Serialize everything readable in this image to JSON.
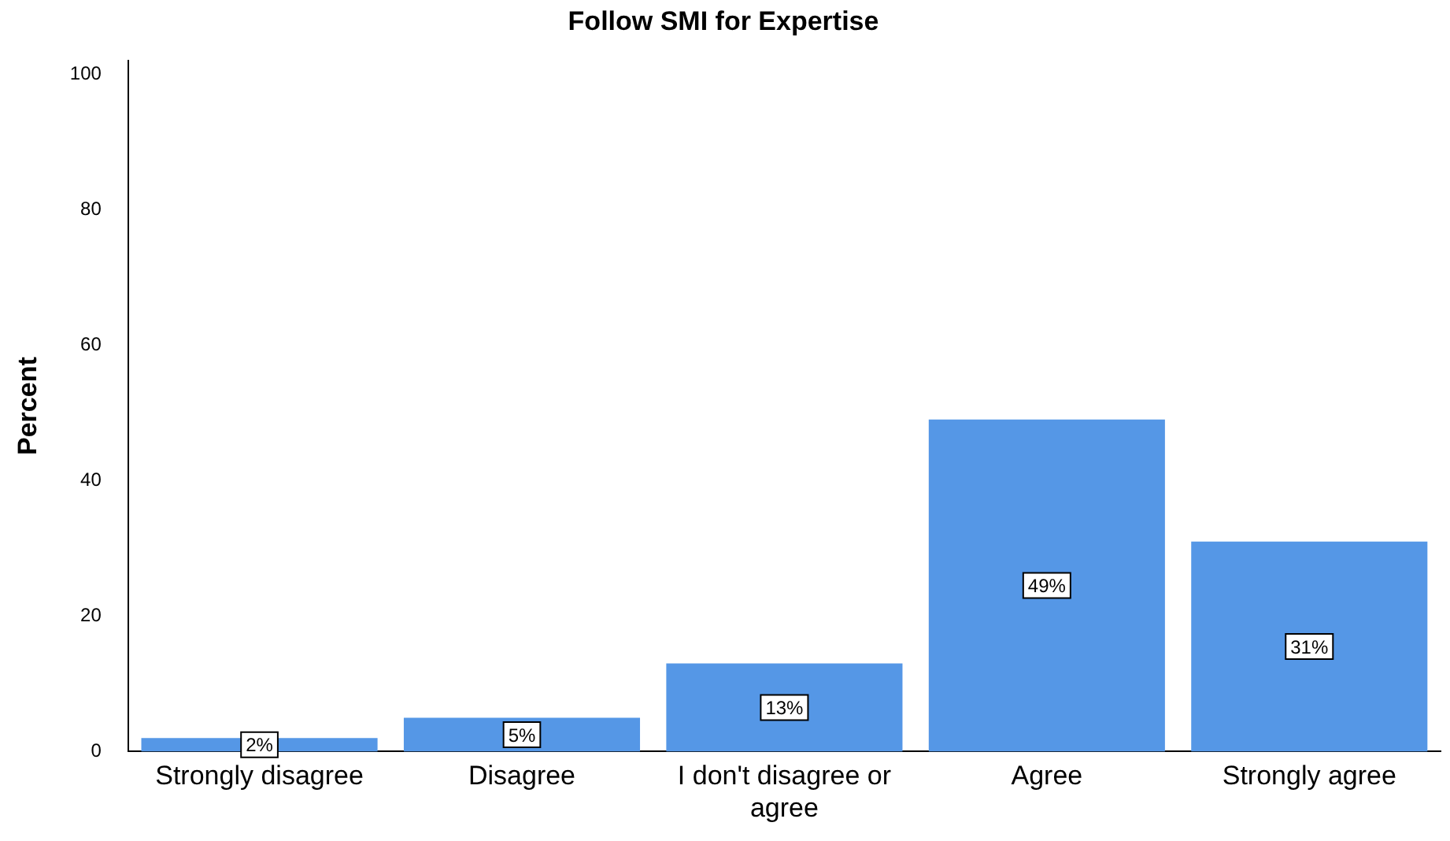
{
  "chart_data": {
    "type": "bar",
    "title": "Follow SMI for Expertise",
    "ylabel": "Percent",
    "categories": [
      "Strongly disagree",
      "Disagree",
      "I don't disagree or agree",
      "Agree",
      "Strongly agree"
    ],
    "values": [
      2,
      5,
      13,
      49,
      31
    ],
    "color": "#5597e6",
    "value_labels": [
      "2%",
      "5%",
      "13%",
      "49%",
      "31%"
    ],
    "ylim": [
      0,
      102
    ],
    "yticks": [
      0,
      20,
      40,
      60,
      80,
      100
    ],
    "grid": false,
    "legend": false
  }
}
